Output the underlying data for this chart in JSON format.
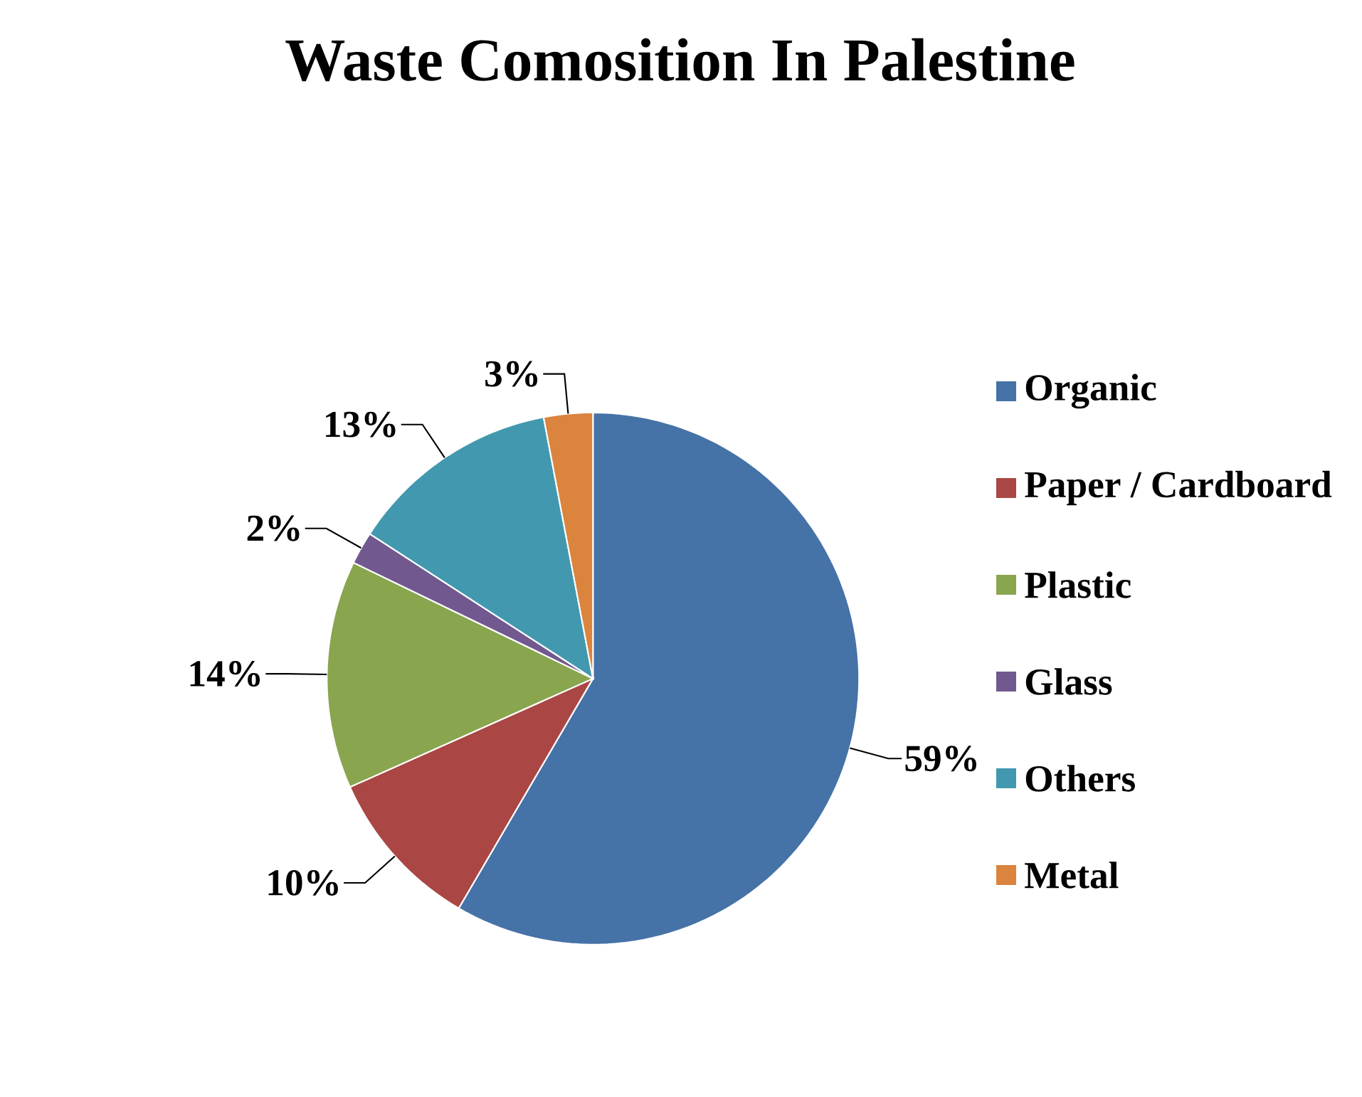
{
  "chart_data": {
    "type": "pie",
    "title": "Waste Comosition In Palestine",
    "categories": [
      "Organic",
      "Paper / Cardboard",
      "Plastic",
      "Glass",
      "Others",
      "Metal"
    ],
    "values": [
      59,
      10,
      14,
      2,
      13,
      3
    ],
    "value_labels": [
      "59%",
      "10%",
      "14%",
      "2%",
      "13%",
      "3%"
    ],
    "colors": [
      "#4572a7",
      "#aa4643",
      "#89a54e",
      "#71588f",
      "#4198af",
      "#db843d"
    ],
    "legend": "right"
  }
}
